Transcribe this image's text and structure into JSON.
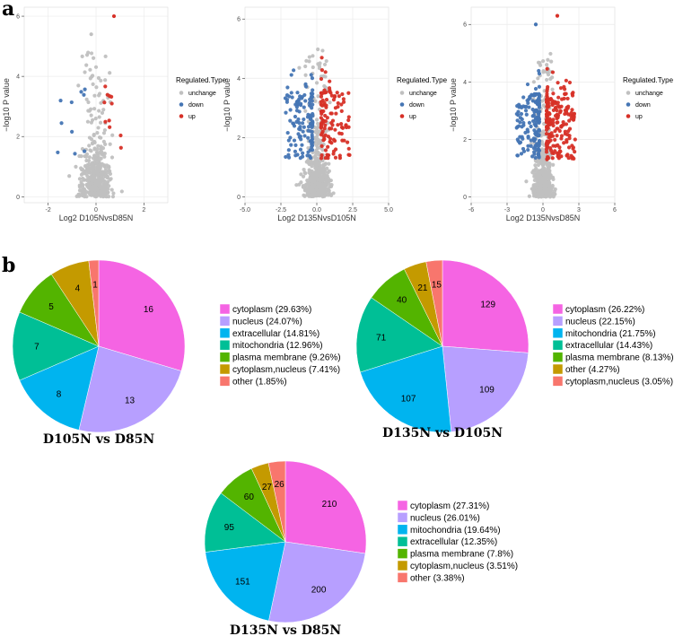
{
  "figure": {
    "panel_a": "a",
    "panel_b": "b"
  },
  "colors": {
    "unchange": "#c0c0c0",
    "down": "#4575b4",
    "up": "#d73027",
    "panel_bg": "#ffffff",
    "grid": "#ebebeb"
  },
  "chart_data": [
    {
      "type": "scatter",
      "kind": "volcano",
      "xlabel": "Log2 D105NvsD85N",
      "ylabel": "−log10 P value",
      "xlim": [
        -3,
        3
      ],
      "ylim": [
        -0.2,
        6.3
      ],
      "xticks": [
        -2,
        0,
        2
      ],
      "yticks": [
        0,
        2,
        4,
        6
      ],
      "legend_title": "Regulated.Type",
      "legend": [
        "unchange",
        "down",
        "up"
      ],
      "series": [
        {
          "name": "unchange",
          "n": 420,
          "spread": 0.55,
          "ymax": 5.4
        },
        {
          "name": "down",
          "n": 10,
          "x_range": [
            -1.6,
            -0.35
          ]
        },
        {
          "name": "up",
          "n": 11,
          "x_range": [
            0.35,
            1.1
          ]
        }
      ],
      "highlight_points": [
        {
          "series": "up",
          "x": 0.75,
          "y": 6.0
        },
        {
          "series": "unchange",
          "x": -0.2,
          "y": 5.4
        }
      ]
    },
    {
      "type": "scatter",
      "kind": "volcano",
      "xlabel": "Log2 D135NvsD105N",
      "ylabel": "−log10 P value",
      "xlim": [
        -5,
        5
      ],
      "ylim": [
        -0.2,
        6.4
      ],
      "xticks": [
        -5.0,
        -2.5,
        0.0,
        2.5,
        5.0
      ],
      "ytick_labels_fixed": true,
      "yticks": [
        0,
        2,
        4,
        6
      ],
      "legend_title": "Regulated.Type",
      "legend": [
        "unchange",
        "down",
        "up"
      ],
      "series": [
        {
          "name": "unchange",
          "n": 500,
          "spread": 0.7,
          "ymax": 5.6
        },
        {
          "name": "down",
          "n": 130,
          "x_range": [
            -2.2,
            -0.3
          ]
        },
        {
          "name": "up",
          "n": 120,
          "x_range": [
            0.3,
            2.3
          ]
        }
      ],
      "highlight_points": []
    },
    {
      "type": "scatter",
      "kind": "volcano",
      "xlabel": "Log2 D135NvsD85N",
      "ylabel": "−log10 P value",
      "xlim": [
        -6,
        6
      ],
      "ylim": [
        -0.2,
        6.6
      ],
      "xticks": [
        -6,
        -3,
        0,
        3,
        6
      ],
      "yticks": [
        0,
        2,
        4,
        6
      ],
      "legend_title": "Regulated.Type",
      "legend": [
        "unchange",
        "down",
        "up"
      ],
      "series": [
        {
          "name": "unchange",
          "n": 500,
          "spread": 0.7,
          "ymax": 5.6
        },
        {
          "name": "down",
          "n": 160,
          "x_range": [
            -2.2,
            -0.3
          ]
        },
        {
          "name": "up",
          "n": 200,
          "x_range": [
            0.3,
            2.7
          ]
        }
      ],
      "highlight_points": [
        {
          "series": "up",
          "x": 1.2,
          "y": 6.3
        },
        {
          "series": "down",
          "x": -0.6,
          "y": 6.0
        }
      ]
    },
    {
      "type": "pie",
      "title": "D105N vs D85N",
      "slices": [
        {
          "category": "cytoplasm",
          "value": 16,
          "legend": "cytoplasm (29.63%)",
          "color": "#f564e3"
        },
        {
          "category": "nucleus",
          "value": 13,
          "legend": "nucleus (24.07%)",
          "color": "#b79fff"
        },
        {
          "category": "extracellular",
          "value": 8,
          "legend": "extracellular (14.81%)",
          "color": "#00b4ef"
        },
        {
          "category": "mitochondria",
          "value": 7,
          "legend": "mitochondria (12.96%)",
          "color": "#00bf96"
        },
        {
          "category": "plasma membrane",
          "value": 5,
          "legend": "plasma membrane (9.26%)",
          "color": "#53b400"
        },
        {
          "category": "cytoplasm,nucleus",
          "value": 4,
          "legend": "cytoplasm,nucleus (7.41%)",
          "color": "#c49a00"
        },
        {
          "category": "other",
          "value": 1,
          "legend": "other (1.85%)",
          "color": "#f8766d"
        }
      ]
    },
    {
      "type": "pie",
      "title": "D135N vs D105N",
      "slices": [
        {
          "category": "cytoplasm",
          "value": 129,
          "legend": "cytoplasm (26.22%)",
          "color": "#f564e3"
        },
        {
          "category": "nucleus",
          "value": 109,
          "legend": "nucleus (22.15%)",
          "color": "#b79fff"
        },
        {
          "category": "mitochondria",
          "value": 107,
          "legend": "mitochondria (21.75%)",
          "color": "#00b4ef"
        },
        {
          "category": "extracellular",
          "value": 71,
          "legend": "extracellular (14.43%)",
          "color": "#00bf96"
        },
        {
          "category": "plasma membrane",
          "value": 40,
          "legend": "plasma membrane (8.13%)",
          "color": "#53b400"
        },
        {
          "category": "other",
          "value": 21,
          "legend": "other (4.27%)",
          "color": "#c49a00"
        },
        {
          "category": "cytoplasm,nucleus",
          "value": 15,
          "legend": "cytoplasm,nucleus (3.05%)",
          "color": "#f8766d"
        }
      ]
    },
    {
      "type": "pie",
      "title": "D135N vs D85N",
      "slices": [
        {
          "category": "cytoplasm",
          "value": 210,
          "legend": "cytoplasm (27.31%)",
          "color": "#f564e3"
        },
        {
          "category": "nucleus",
          "value": 200,
          "legend": "nucleus (26.01%)",
          "color": "#b79fff"
        },
        {
          "category": "mitochondria",
          "value": 151,
          "legend": "mitochondria (19.64%)",
          "color": "#00b4ef"
        },
        {
          "category": "extracellular",
          "value": 95,
          "legend": "extracellular (12.35%)",
          "color": "#00bf96"
        },
        {
          "category": "plasma membrane",
          "value": 60,
          "legend": "plasma membrane (7.8%)",
          "color": "#53b400"
        },
        {
          "category": "cytoplasm,nucleus",
          "value": 27,
          "legend": "cytoplasm,nucleus (3.51%)",
          "color": "#c49a00"
        },
        {
          "category": "other",
          "value": 26,
          "legend": "other (3.38%)",
          "color": "#f8766d"
        }
      ]
    }
  ]
}
